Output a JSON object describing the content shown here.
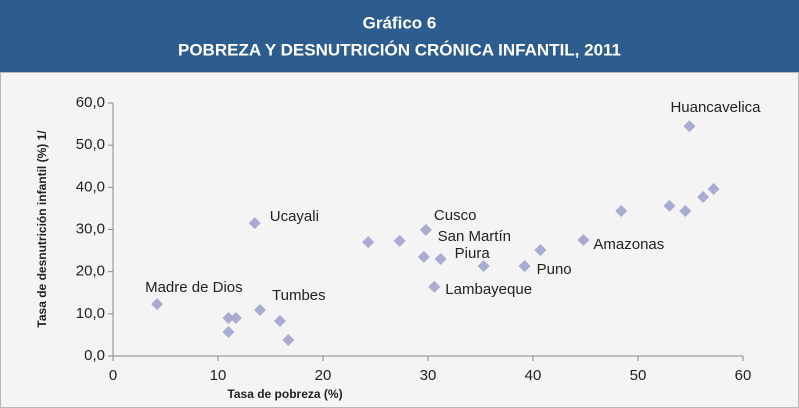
{
  "header": {
    "label": "Gráfico 6"
  },
  "chart_data": {
    "type": "scatter",
    "title": "POBREZA Y DESNUTRICIÓN CRÓNICA INFANTIL, 2011",
    "x_label": "Tasa de pobreza (%)",
    "y_label": "Tasa de desnutrición infantil (%) 1/",
    "color": "#a9abd1",
    "x": [
      4.2,
      11.0,
      11.7,
      11.0,
      13.5,
      14.0,
      15.9,
      16.7,
      24.3,
      27.3,
      29.8,
      29.6,
      31.2,
      30.6,
      35.3,
      39.2,
      40.7,
      44.8,
      48.4,
      53.0,
      54.5,
      54.9,
      56.2,
      57.2
    ],
    "y": [
      12.3,
      9.0,
      9.0,
      5.7,
      31.5,
      10.9,
      8.3,
      3.8,
      27.0,
      27.3,
      29.9,
      23.5,
      23.0,
      16.4,
      21.3,
      21.3,
      25.1,
      27.5,
      34.4,
      35.6,
      34.4,
      54.5,
      37.7,
      39.6
    ],
    "labels": [
      "Madre de Dios",
      null,
      null,
      null,
      "Ucayali",
      "Tumbes",
      null,
      null,
      null,
      null,
      "Cusco",
      null,
      "San Martín",
      "Lambayeque",
      "Piura",
      "Puno",
      null,
      "Amazonas",
      null,
      null,
      null,
      "Huancavelica",
      null,
      null
    ],
    "xlim": [
      0,
      60
    ],
    "xticks": [
      0,
      10,
      20,
      30,
      40,
      50,
      60
    ],
    "ylim": [
      0,
      60
    ],
    "yticks": [
      {
        "value": 0,
        "label": "0,0"
      },
      {
        "value": 10,
        "label": "10,0"
      },
      {
        "value": 20,
        "label": "20,0"
      },
      {
        "value": 30,
        "label": "30,0"
      },
      {
        "value": 40,
        "label": "40,0"
      },
      {
        "value": 50,
        "label": "50,0"
      },
      {
        "value": 60,
        "label": "60,0"
      }
    ],
    "grid": false
  }
}
